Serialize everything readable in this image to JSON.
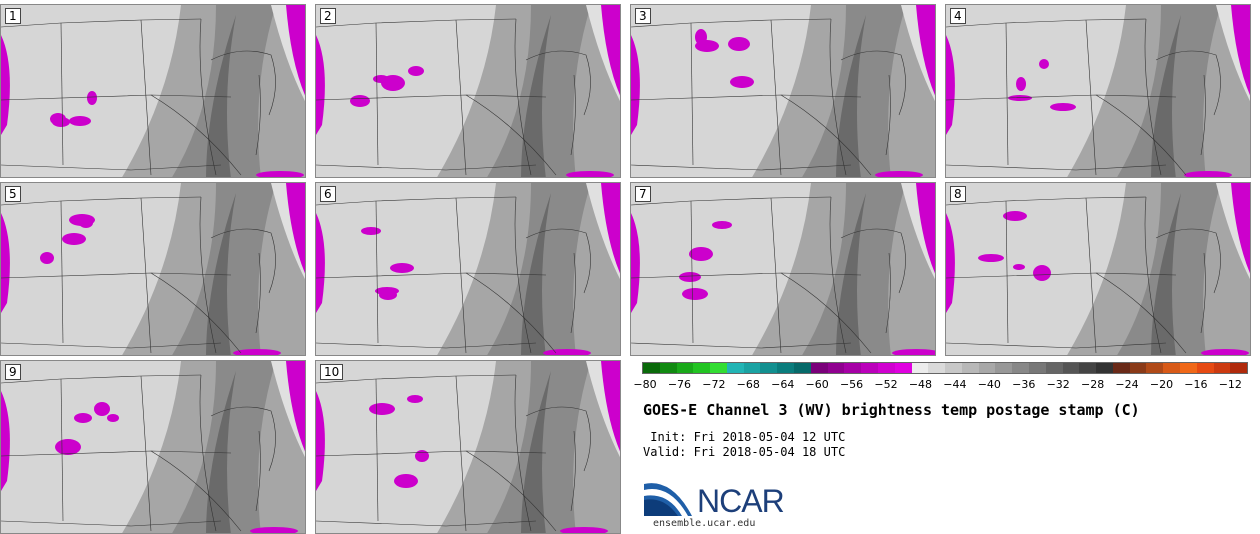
{
  "panels": [
    {
      "label": "1"
    },
    {
      "label": "2"
    },
    {
      "label": "3"
    },
    {
      "label": "4"
    },
    {
      "label": "5"
    },
    {
      "label": "6"
    },
    {
      "label": "7"
    },
    {
      "label": "8"
    },
    {
      "label": "9"
    },
    {
      "label": "10"
    }
  ],
  "colorbar": {
    "ticks": [
      "−80",
      "−76",
      "−72",
      "−68",
      "−64",
      "−60",
      "−56",
      "−52",
      "−48",
      "−44",
      "−40",
      "−36",
      "−32",
      "−28",
      "−24",
      "−20",
      "−16",
      "−12"
    ],
    "colors": [
      "#0a6a0a",
      "#118a11",
      "#19a919",
      "#22c422",
      "#33dd33",
      "#22b5b5",
      "#1aa3a3",
      "#129090",
      "#0a7d7d",
      "#066a6a",
      "#7a007a",
      "#900090",
      "#a600a6",
      "#bb00bb",
      "#d000d0",
      "#e000e0",
      "#ececec",
      "#dadada",
      "#c8c8c8",
      "#b8b8b8",
      "#a8a8a8",
      "#989898",
      "#888888",
      "#787878",
      "#666666",
      "#555555",
      "#444444",
      "#333333",
      "#6a2a18",
      "#8a3a18",
      "#b04a18",
      "#d85a18",
      "#f06818",
      "#e64a12",
      "#cc3a10",
      "#b02a0c"
    ],
    "accent_purple": "#cc00cc"
  },
  "title": "GOES-E Channel 3 (WV) brightness temp postage stamp (C)",
  "init": " Init: Fri 2018-05-04 12 UTC",
  "valid": "Valid: Fri 2018-05-04 18 UTC",
  "logo": {
    "name": "NCAR"
  },
  "site": "ensemble.ucar.edu"
}
